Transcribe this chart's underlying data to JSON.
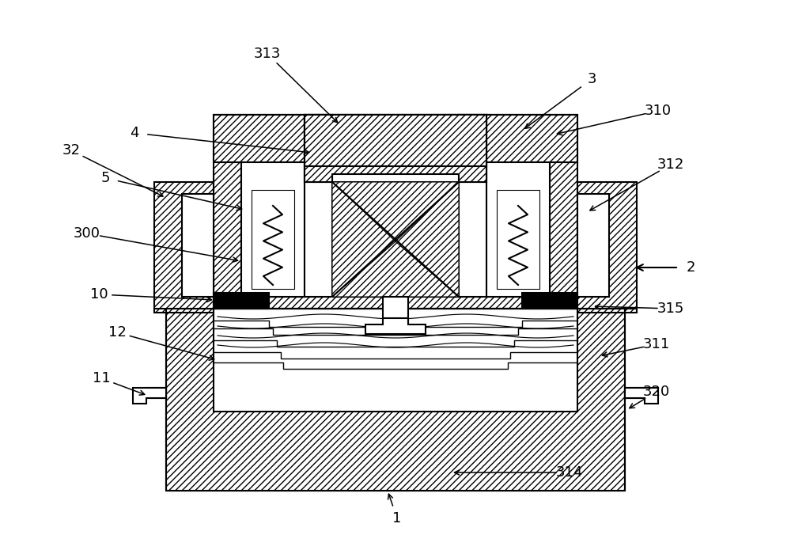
{
  "bg_color": "#ffffff",
  "figsize": [
    10,
    7
  ],
  "dpi": 100
}
